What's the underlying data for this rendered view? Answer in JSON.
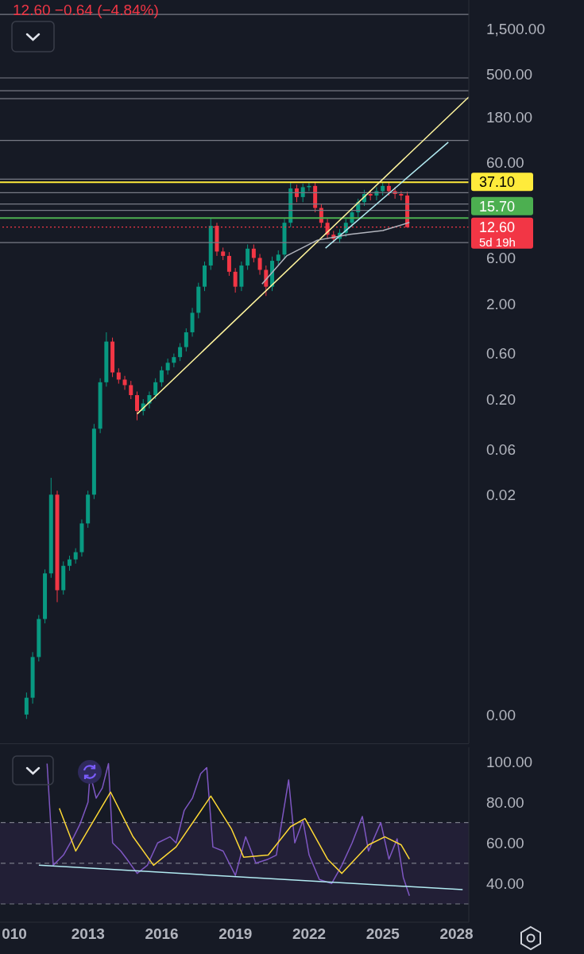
{
  "chart_data": [
    {
      "type": "candlestick",
      "log": true,
      "tick_labels": "y",
      "xlim": [
        "2009-06",
        "2028-07"
      ],
      "ylim": [
        5e-05,
        3000
      ],
      "yticks": [
        {
          "value": 0.0001,
          "label": "0.00"
        },
        {
          "value": 0.02,
          "label": "0.02"
        },
        {
          "value": 0.06,
          "label": "0.06"
        },
        {
          "value": 0.2,
          "label": "0.20"
        },
        {
          "value": 0.6,
          "label": "0.60"
        },
        {
          "value": 2,
          "label": "2.00"
        },
        {
          "value": 6,
          "label": "6.00"
        },
        {
          "value": 60,
          "label": "60.00"
        },
        {
          "value": 180,
          "label": "180.00"
        },
        {
          "value": 500,
          "label": "500.00"
        },
        {
          "value": 1500,
          "label": "1,500.00"
        }
      ],
      "x": [
        "2010-07",
        "2010-10",
        "2011-01",
        "2011-04",
        "2011-07",
        "2011-10",
        "2012-01",
        "2012-04",
        "2012-07",
        "2012-10",
        "2013-01",
        "2013-04",
        "2013-07",
        "2013-10",
        "2014-01",
        "2014-04",
        "2014-07",
        "2014-10",
        "2015-01",
        "2015-04",
        "2015-07",
        "2015-10",
        "2016-01",
        "2016-04",
        "2016-07",
        "2016-10",
        "2017-01",
        "2017-04",
        "2017-07",
        "2017-10",
        "2018-01",
        "2018-04",
        "2018-07",
        "2018-10",
        "2019-01",
        "2019-04",
        "2019-07",
        "2019-10",
        "2020-01",
        "2020-04",
        "2020-07",
        "2020-10",
        "2021-01",
        "2021-04",
        "2021-07",
        "2021-10",
        "2022-01",
        "2022-04",
        "2022-07",
        "2022-10",
        "2023-01",
        "2023-04",
        "2023-07",
        "2023-10",
        "2024-01",
        "2024-04",
        "2024-07",
        "2024-10",
        "2025-01",
        "2025-04",
        "2025-07",
        "2025-10",
        "2026-01"
      ],
      "ohlc": [
        [
          0.0001,
          0.00017,
          9e-05,
          0.00015
        ],
        [
          0.00015,
          0.00045,
          0.00013,
          0.0004
        ],
        [
          0.0004,
          0.0011,
          0.00036,
          0.001
        ],
        [
          0.001,
          0.0033,
          0.0009,
          0.003
        ],
        [
          0.003,
          0.03,
          0.0027,
          0.02
        ],
        [
          0.02,
          0.022,
          0.0015,
          0.002
        ],
        [
          0.002,
          0.004,
          0.0018,
          0.0036
        ],
        [
          0.0036,
          0.0046,
          0.0032,
          0.0042
        ],
        [
          0.0042,
          0.0055,
          0.0038,
          0.005
        ],
        [
          0.005,
          0.011,
          0.0045,
          0.01
        ],
        [
          0.01,
          0.022,
          0.009,
          0.02
        ],
        [
          0.02,
          0.11,
          0.018,
          0.098
        ],
        [
          0.098,
          0.33,
          0.088,
          0.3
        ],
        [
          0.3,
          1.0,
          0.27,
          0.8
        ],
        [
          0.8,
          0.88,
          0.34,
          0.38
        ],
        [
          0.38,
          0.42,
          0.29,
          0.32
        ],
        [
          0.32,
          0.35,
          0.25,
          0.28
        ],
        [
          0.28,
          0.31,
          0.2,
          0.22
        ],
        [
          0.22,
          0.24,
          0.12,
          0.15
        ],
        [
          0.15,
          0.2,
          0.135,
          0.18
        ],
        [
          0.18,
          0.24,
          0.16,
          0.22
        ],
        [
          0.22,
          0.33,
          0.2,
          0.3
        ],
        [
          0.3,
          0.44,
          0.27,
          0.4
        ],
        [
          0.4,
          0.53,
          0.36,
          0.48
        ],
        [
          0.48,
          0.6,
          0.43,
          0.55
        ],
        [
          0.55,
          0.77,
          0.5,
          0.7
        ],
        [
          0.7,
          1.1,
          0.63,
          1.0
        ],
        [
          1.0,
          1.8,
          0.9,
          1.6
        ],
        [
          1.6,
          3.3,
          1.4,
          3.0
        ],
        [
          3.0,
          5.5,
          2.7,
          5
        ],
        [
          5,
          15.7,
          4.5,
          13
        ],
        [
          13,
          14,
          6.3,
          7
        ],
        [
          7,
          7.7,
          5.7,
          6.3
        ],
        [
          6.3,
          6.9,
          3.9,
          4.3
        ],
        [
          4.3,
          4.7,
          2.6,
          3
        ],
        [
          3,
          5.5,
          2.7,
          5
        ],
        [
          5,
          8.3,
          4.5,
          7.5
        ],
        [
          7.5,
          8.3,
          5.4,
          6
        ],
        [
          6,
          6.6,
          4,
          4.5
        ],
        [
          4.5,
          5,
          2.4,
          3
        ],
        [
          3,
          6.2,
          2.7,
          5.6
        ],
        [
          5.6,
          7.2,
          5,
          6.5
        ],
        [
          6.5,
          15.4,
          5.9,
          14
        ],
        [
          14,
          37,
          12.6,
          32
        ],
        [
          32,
          35,
          23,
          26
        ],
        [
          26,
          36,
          23,
          33
        ],
        [
          33,
          37.1,
          30,
          34
        ],
        [
          34,
          37,
          18,
          20
        ],
        [
          20,
          22,
          12.6,
          14
        ],
        [
          14,
          15.4,
          9.5,
          10.5
        ],
        [
          10.5,
          11.5,
          8.6,
          9.5
        ],
        [
          9.5,
          12,
          8.6,
          11
        ],
        [
          11,
          15.4,
          10,
          14
        ],
        [
          14,
          20,
          12.6,
          18
        ],
        [
          18,
          25,
          16,
          23
        ],
        [
          23,
          31,
          21,
          28
        ],
        [
          28,
          31,
          24,
          27
        ],
        [
          27,
          33,
          24,
          30
        ],
        [
          30,
          37.1,
          27,
          34
        ],
        [
          34,
          37,
          27,
          30
        ],
        [
          30,
          33,
          25,
          28
        ],
        [
          28,
          30,
          24,
          27
        ],
        [
          27,
          29.7,
          12.4,
          12.6
        ]
      ],
      "colors": [
        "#089981",
        "#089981",
        "#089981",
        "#089981",
        "#089981",
        "#f23645",
        "#089981",
        "#089981",
        "#089981",
        "#089981",
        "#089981",
        "#089981",
        "#089981",
        "#089981",
        "#f23645",
        "#f23645",
        "#f23645",
        "#f23645",
        "#f23645",
        "#089981",
        "#089981",
        "#089981",
        "#089981",
        "#089981",
        "#089981",
        "#089981",
        "#089981",
        "#089981",
        "#089981",
        "#089981",
        "#089981",
        "#f23645",
        "#f23645",
        "#f23645",
        "#f23645",
        "#089981",
        "#089981",
        "#f23645",
        "#f23645",
        "#f23645",
        "#089981",
        "#089981",
        "#089981",
        "#089981",
        "#f23645",
        "#089981",
        "#089981",
        "#f23645",
        "#f23645",
        "#f23645",
        "#f23645",
        "#089981",
        "#089981",
        "#089981",
        "#089981",
        "#089981",
        "#f23645",
        "#089981",
        "#089981",
        "#f23645",
        "#f23645",
        "#f23645",
        "#f23645"
      ],
      "series": [
        {
          "type": "line",
          "color": "#fff59d",
          "x": [
            "2015-01",
            "2028-07"
          ],
          "values": [
            0.14,
            290
          ]
        },
        {
          "type": "line",
          "color": "#b2ebf2",
          "x": [
            "2022-09",
            "2027-09"
          ],
          "values": [
            7.6,
            97.5
          ]
        },
        {
          "type": "line",
          "color": "#b2b5be",
          "x": [
            "2020-02",
            "2021-02",
            "2022-05",
            "2023-09",
            "2025-01",
            "2026-02"
          ],
          "values": [
            3.2,
            6.3,
            9.2,
            10.6,
            11.6,
            14.1
          ]
        }
      ],
      "ref_lines": [
        {
          "axis": "y",
          "value": 2120,
          "color": "#787b86"
        },
        {
          "axis": "y",
          "value": 459,
          "color": "#787b86"
        },
        {
          "axis": "y",
          "value": 337,
          "color": "#787b86"
        },
        {
          "axis": "y",
          "value": 278,
          "color": "#787b86"
        },
        {
          "axis": "y",
          "value": 102,
          "color": "#787b86"
        },
        {
          "axis": "y",
          "value": 40,
          "color": "#787b86"
        },
        {
          "axis": "y",
          "value": 28.9,
          "color": "#787b86"
        },
        {
          "axis": "y",
          "value": 22,
          "color": "#787b86"
        },
        {
          "axis": "y",
          "value": 18.9,
          "color": "#787b86"
        },
        {
          "axis": "y",
          "value": 8.7,
          "color": "#787b86"
        },
        {
          "axis": "y",
          "value": 37.1,
          "label": "37.10",
          "color": "#ffeb3b"
        },
        {
          "axis": "y",
          "value": 15.7,
          "label": "15.70",
          "color": "#4caf50"
        },
        {
          "axis": "y",
          "value": 12.6,
          "label": "12.60",
          "color": "#f23645",
          "line_style": "dotted"
        }
      ],
      "annotations": [
        "12.60 −0.64 (−4.84%)",
        "5d 19h"
      ]
    },
    {
      "type": "line",
      "xlim": [
        "2009-06",
        "2028-07"
      ],
      "xticks": [
        {
          "value": "2010",
          "label": "010"
        },
        "2013",
        "2016",
        "2019",
        "2022",
        "2025",
        "2028"
      ],
      "ylim": [
        21,
        107
      ],
      "yticks": [
        {
          "value": 40,
          "label": "40.00"
        },
        {
          "value": 60,
          "label": "60.00"
        },
        {
          "value": 80,
          "label": "80.00"
        },
        {
          "value": 100,
          "label": "100.00"
        }
      ],
      "bands": [
        {
          "axis": "y",
          "from": 30,
          "to": 70,
          "color": "#221f36"
        }
      ],
      "ref_lines": [
        {
          "axis": "y",
          "value": 70,
          "color": "#787b86",
          "line_style": "dashed"
        },
        {
          "axis": "y",
          "value": 50,
          "color": "#787b86",
          "line_style": "dashed"
        },
        {
          "axis": "y",
          "value": 30,
          "color": "#787b86",
          "line_style": "dashed"
        }
      ],
      "series": [
        {
          "color": "#7e57c2",
          "x": [
            "2011-05",
            "2011-08",
            "2012-01",
            "2012-06",
            "2012-09",
            "2013-01",
            "2013-02",
            "2013-05",
            "2013-08",
            "2013-11",
            "2014-01",
            "2014-05",
            "2014-08",
            "2015-01",
            "2015-06",
            "2015-11",
            "2016-05",
            "2016-08",
            "2016-12",
            "2017-04",
            "2017-08",
            "2017-11",
            "2018-02",
            "2018-07",
            "2019-01",
            "2019-06",
            "2019-11",
            "2020-05",
            "2020-09",
            "2021-03",
            "2021-06",
            "2021-10",
            "2022-01",
            "2022-06",
            "2022-12",
            "2023-05",
            "2023-10",
            "2024-03",
            "2024-06",
            "2024-12",
            "2025-04",
            "2025-08",
            "2025-11",
            "2026-02"
          ],
          "values": [
            99,
            49,
            54,
            63,
            69,
            80,
            94,
            82,
            87,
            99,
            60,
            56,
            52,
            45,
            49,
            60,
            63,
            60,
            76,
            82,
            94,
            97,
            58,
            56,
            44,
            63,
            50,
            52,
            54,
            91,
            60,
            71,
            54,
            42,
            40,
            49,
            60,
            73,
            56,
            70,
            52,
            62,
            43,
            34
          ]
        },
        {
          "color": "#fdd835",
          "x": [
            "2011-11",
            "2012-07",
            "2013-12",
            "2014-11",
            "2015-09",
            "2016-08",
            "2018-01",
            "2018-11",
            "2019-05",
            "2020-05",
            "2021-04",
            "2021-11",
            "2022-10",
            "2023-05",
            "2024-06",
            "2025-02",
            "2025-10",
            "2026-02"
          ],
          "values": [
            77,
            56,
            85,
            63,
            49,
            58,
            83,
            67,
            53,
            54,
            68,
            72,
            52,
            45,
            59,
            63,
            59,
            52
          ]
        },
        {
          "color": "#b2ebf2",
          "x": [
            "2011-01",
            "2028-04"
          ],
          "values": [
            49,
            37
          ]
        }
      ]
    }
  ]
}
